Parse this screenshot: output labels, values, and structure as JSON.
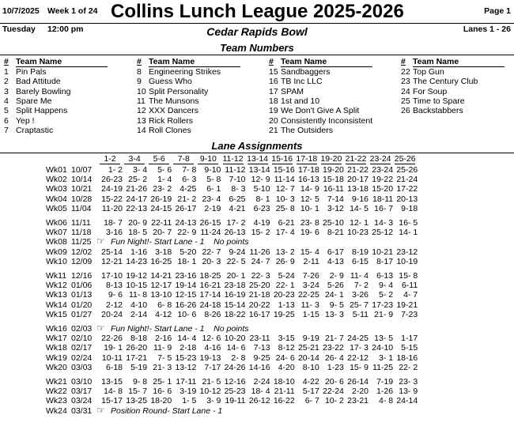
{
  "header": {
    "date": "10/7/2025",
    "week": "Week 1 of 24",
    "title": "Collins Lunch League 2025-2026",
    "page": "Page 1",
    "day": "Tuesday",
    "time": "12:00 pm",
    "venue": "Cedar Rapids Bowl",
    "lanes": "Lanes 1 - 26"
  },
  "team_numbers": {
    "title": "Team Numbers",
    "number_header": "#",
    "name_header": "Team Name",
    "columns": [
      [
        [
          "1",
          "Pin Pals"
        ],
        [
          "2",
          "Bad Attitude"
        ],
        [
          "3",
          "Barely Bowling"
        ],
        [
          "4",
          "Spare Me"
        ],
        [
          "5",
          "Split Happens"
        ],
        [
          "6",
          "Yep !"
        ],
        [
          "7",
          "Craptastic"
        ]
      ],
      [
        [
          "8",
          "Engineering Strikes"
        ],
        [
          "9",
          "Guess Who"
        ],
        [
          "10",
          "Split Personality"
        ],
        [
          "11",
          "The Munsons"
        ],
        [
          "12",
          "XXX Dancers"
        ],
        [
          "13",
          "Rick Rollers"
        ],
        [
          "14",
          "Roll Clones"
        ]
      ],
      [
        [
          "15",
          "Sandbaggers"
        ],
        [
          "16",
          "TB Inc LLC"
        ],
        [
          "17",
          "SPAM"
        ],
        [
          "18",
          "1st and 10"
        ],
        [
          "19",
          "We Don't Give A Split"
        ],
        [
          "20",
          "Consistently Inconsistent"
        ],
        [
          "21",
          "The Outsiders"
        ]
      ],
      [
        [
          "22",
          "Top Gun"
        ],
        [
          "23",
          "The Century Club"
        ],
        [
          "24",
          "For Soup"
        ],
        [
          "25",
          "Time to Spare"
        ],
        [
          "26",
          "Backstabbers"
        ]
      ]
    ]
  },
  "lane_assignments": {
    "title": "Lane Assignments",
    "columns": [
      "1-2",
      "3-4",
      "5-6",
      "7-8",
      "9-10",
      "11-12",
      "13-14",
      "15-16",
      "17-18",
      "19-20",
      "21-22",
      "23-24",
      "25-26"
    ],
    "rows": [
      {
        "week": "Wk01",
        "date": "10/07",
        "cells": [
          "1- 2",
          "3- 4",
          "5- 6",
          "7- 8",
          "9-10",
          "11-12",
          "13-14",
          "15-16",
          "17-18",
          "19-20",
          "21-22",
          "23-24",
          "25-26"
        ]
      },
      {
        "week": "Wk02",
        "date": "10/14",
        "cells": [
          "26-23",
          "25- 2",
          "1- 4",
          "6- 3",
          "5- 8",
          "7-10",
          "12- 9",
          "11-14",
          "16-13",
          "15-18",
          "20-17",
          "19-22",
          "21-24"
        ]
      },
      {
        "week": "Wk03",
        "date": "10/21",
        "cells": [
          "24-19",
          "21-26",
          "23- 2",
          "4-25",
          "6- 1",
          "8- 3",
          "5-10",
          "12- 7",
          "14- 9",
          "16-11",
          "13-18",
          "15-20",
          "17-22"
        ]
      },
      {
        "week": "Wk04",
        "date": "10/28",
        "cells": [
          "15-22",
          "24-17",
          "26-19",
          "21- 2",
          "23- 4",
          "6-25",
          "8- 1",
          "10- 3",
          "12- 5",
          "7-14",
          "9-16",
          "18-11",
          "20-13"
        ]
      },
      {
        "week": "Wk05",
        "date": "11/04",
        "cells": [
          "11-20",
          "22-13",
          "24-15",
          "26-17",
          "2-19",
          "4-21",
          "6-23",
          "25- 8",
          "10- 1",
          "3-12",
          "14- 5",
          "16- 7",
          "9-18"
        ]
      },
      {
        "week": "Wk06",
        "date": "11/11",
        "cells": [
          "18- 7",
          "20- 9",
          "22-11",
          "24-13",
          "26-15",
          "17- 2",
          "4-19",
          "6-21",
          "23- 8",
          "25-10",
          "12- 1",
          "14- 3",
          "16- 5"
        ]
      },
      {
        "week": "Wk07",
        "date": "11/18",
        "cells": [
          "3-16",
          "18- 5",
          "20- 7",
          "22- 9",
          "11-24",
          "26-13",
          "15- 2",
          "17- 4",
          "19- 6",
          "8-21",
          "10-23",
          "25-12",
          "14- 1"
        ]
      },
      {
        "week": "Wk08",
        "date": "11/25",
        "note": "Fun Night!- Start Lane - 1    No points"
      },
      {
        "week": "Wk09",
        "date": "12/02",
        "cells": [
          "25-14",
          "1-16",
          "3-18",
          "5-20",
          "22- 7",
          "9-24",
          "11-26",
          "13- 2",
          "15- 4",
          "6-17",
          "8-19",
          "10-21",
          "23-12"
        ]
      },
      {
        "week": "Wk10",
        "date": "12/09",
        "cells": [
          "12-21",
          "14-23",
          "16-25",
          "18- 1",
          "20- 3",
          "22- 5",
          "24- 7",
          "26- 9",
          "2-11",
          "4-13",
          "6-15",
          "8-17",
          "10-19"
        ]
      },
      {
        "week": "Wk11",
        "date": "12/16",
        "cells": [
          "17-10",
          "19-12",
          "14-21",
          "23-16",
          "18-25",
          "20- 1",
          "22- 3",
          "5-24",
          "7-26",
          "2- 9",
          "11- 4",
          "6-13",
          "15- 8"
        ]
      },
      {
        "week": "Wk12",
        "date": "01/06",
        "cells": [
          "8-13",
          "10-15",
          "12-17",
          "19-14",
          "16-21",
          "23-18",
          "25-20",
          "22- 1",
          "3-24",
          "5-26",
          "7- 2",
          "9- 4",
          "6-11"
        ]
      },
      {
        "week": "Wk13",
        "date": "01/13",
        "cells": [
          "9- 6",
          "11- 8",
          "13-10",
          "12-15",
          "17-14",
          "16-19",
          "21-18",
          "20-23",
          "22-25",
          "24- 1",
          "3-26",
          "5- 2",
          "4- 7"
        ]
      },
      {
        "week": "Wk14",
        "date": "01/20",
        "cells": [
          "2-12",
          "4-10",
          "6- 8",
          "16-26",
          "24-18",
          "15-14",
          "20-22",
          "1-13",
          "11- 3",
          "9- 5",
          "25- 7",
          "17-23",
          "19-21"
        ]
      },
      {
        "week": "Wk15",
        "date": "01/27",
        "cells": [
          "20-24",
          "2-14",
          "4-12",
          "10- 6",
          "8-26",
          "18-22",
          "16-17",
          "19-25",
          "1-15",
          "13- 3",
          "5-11",
          "21- 9",
          "7-23"
        ]
      },
      {
        "week": "Wk16",
        "date": "02/03",
        "note": "Fun Night!- Start Lane - 1    No points"
      },
      {
        "week": "Wk17",
        "date": "02/10",
        "cells": [
          "22-26",
          "8-18",
          "2-16",
          "14- 4",
          "12- 6",
          "10-20",
          "23-11",
          "3-15",
          "9-19",
          "21- 7",
          "24-25",
          "13- 5",
          "1-17"
        ]
      },
      {
        "week": "Wk18",
        "date": "02/17",
        "cells": [
          "19- 1",
          "26-20",
          "11- 9",
          "2-18",
          "4-16",
          "14- 6",
          "7-13",
          "8-12",
          "25-21",
          "23-22",
          "17- 3",
          "24-10",
          "5-15"
        ]
      },
      {
        "week": "Wk19",
        "date": "02/24",
        "cells": [
          "10-11",
          "17-21",
          "7- 5",
          "15-23",
          "19-13",
          "2- 8",
          "9-25",
          "24- 6",
          "20-14",
          "26- 4",
          "22-12",
          "3- 1",
          "18-16"
        ]
      },
      {
        "week": "Wk20",
        "date": "03/03",
        "cells": [
          "6-18",
          "5-19",
          "21- 3",
          "13-12",
          "7-17",
          "24-26",
          "14-16",
          "4-20",
          "8-10",
          "1-23",
          "15- 9",
          "11-25",
          "22- 2"
        ]
      },
      {
        "week": "Wk21",
        "date": "03/10",
        "cells": [
          "13-15",
          "9- 8",
          "25- 1",
          "17-11",
          "21- 5",
          "12-16",
          "2-24",
          "18-10",
          "4-22",
          "20- 6",
          "26-14",
          "7-19",
          "23- 3"
        ]
      },
      {
        "week": "Wk22",
        "date": "03/17",
        "cells": [
          "14- 8",
          "15- 7",
          "16- 6",
          "3-19",
          "10-12",
          "25-23",
          "18- 4",
          "21-11",
          "5-17",
          "22-24",
          "2-20",
          "1-26",
          "13- 9"
        ]
      },
      {
        "week": "Wk23",
        "date": "03/24",
        "cells": [
          "15-17",
          "13-25",
          "18-20",
          "1- 5",
          "3- 9",
          "19-11",
          "26-12",
          "16-22",
          "6- 7",
          "10- 2",
          "23-21",
          "4- 8",
          "24-14"
        ]
      },
      {
        "week": "Wk24",
        "date": "03/31",
        "note": "Position Round- Start Lane - 1"
      }
    ]
  }
}
